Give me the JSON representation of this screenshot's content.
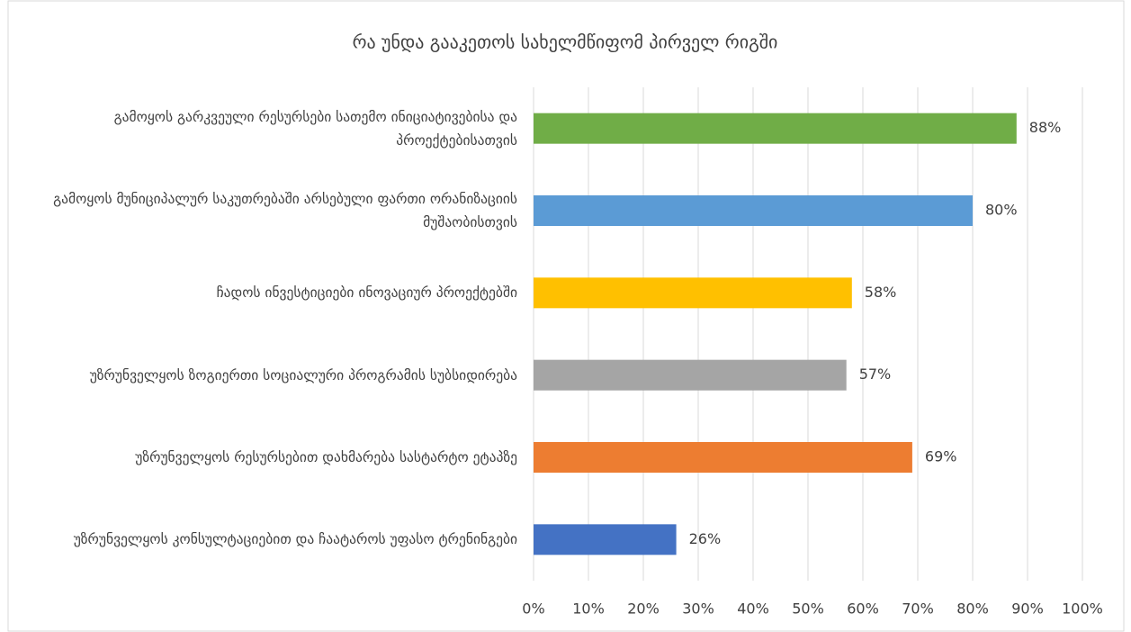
{
  "chart_data": {
    "type": "bar",
    "orientation": "horizontal",
    "title": "რა უნდა გააკეთოს სახელმწიფომ პირველ რიგში",
    "categories": [
      "გამოყოს გარკვეული რესურსები  სათემო ინიციატივებისა და პროექტებისათვის",
      "გამოყოს მუნიციპალურ საკუთრებაში არსებული ფართი ორანიზაციის მუშაობისთვის",
      "ჩადოს ინვესტიციები ინოვაციურ პროექტებში",
      "უზრუნველყოს ზოგიერთი სოციალური პროგრამის სუბსიდირება",
      "უზრუნველყოს რესურსებით დახმარება სასტარტო ეტაპზე",
      "უზრუნველყოს კონსულტაციებით და ჩაატაროს უფასო ტრენინგები"
    ],
    "values": [
      88,
      80,
      58,
      57,
      69,
      26
    ],
    "value_labels": [
      "88%",
      "80%",
      "58%",
      "57%",
      "69%",
      "26%"
    ],
    "colors": [
      "#70ad47",
      "#5b9bd5",
      "#ffc000",
      "#a5a5a5",
      "#ed7d31",
      "#4472c4"
    ],
    "xlim": [
      0,
      100
    ],
    "xticks": [
      {
        "value": 0,
        "label": "0%"
      },
      {
        "value": 10,
        "label": "10%"
      },
      {
        "value": 20,
        "label": "20%"
      },
      {
        "value": 30,
        "label": "30%"
      },
      {
        "value": 40,
        "label": "40%"
      },
      {
        "value": 50,
        "label": "50%"
      },
      {
        "value": 60,
        "label": "60%"
      },
      {
        "value": 70,
        "label": "70%"
      },
      {
        "value": 80,
        "label": "80%"
      },
      {
        "value": 90,
        "label": "90%"
      },
      {
        "value": 100,
        "label": "100%"
      }
    ],
    "grid": true
  }
}
